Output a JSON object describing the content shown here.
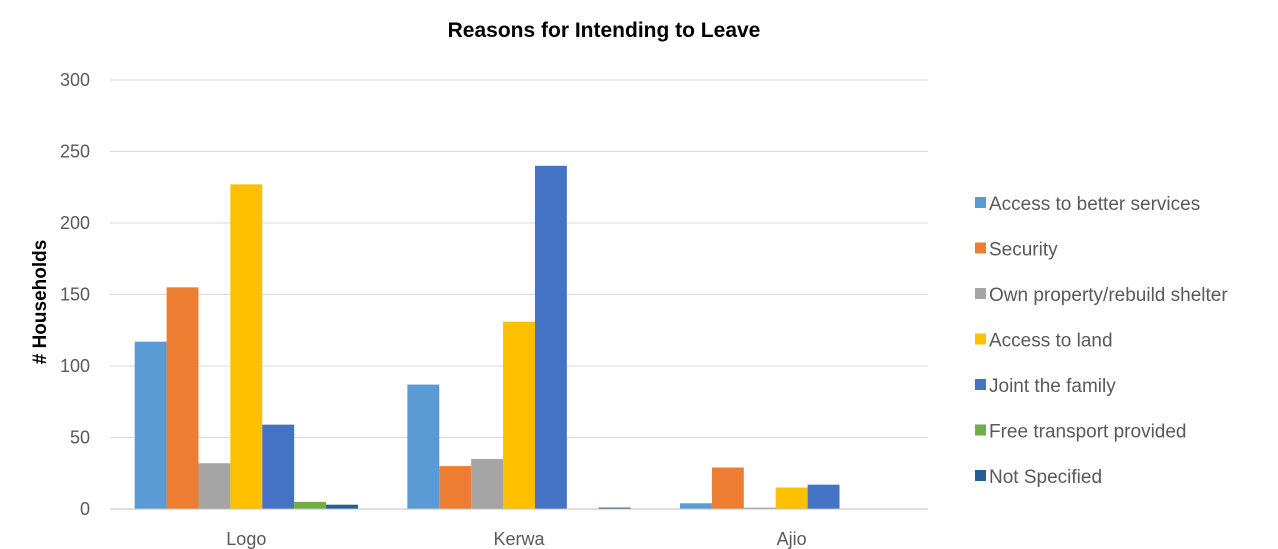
{
  "chart_data": {
    "type": "bar",
    "title": "Reasons for Intending to Leave",
    "xlabel": "",
    "ylabel": "# Households",
    "ylim": [
      0,
      300
    ],
    "yticks": [
      0,
      50,
      100,
      150,
      200,
      250,
      300
    ],
    "grid": true,
    "legend_position": "right",
    "categories": [
      "Logo",
      "Kerwa",
      "Ajio"
    ],
    "series": [
      {
        "name": "Access to better services",
        "color": "#5b9bd5",
        "values": [
          117,
          87,
          4
        ]
      },
      {
        "name": "Security",
        "color": "#ed7d31",
        "values": [
          155,
          30,
          29
        ]
      },
      {
        "name": "Own property/rebuild shelter",
        "color": "#a5a5a5",
        "values": [
          32,
          35,
          1
        ]
      },
      {
        "name": "Access to land",
        "color": "#ffc000",
        "values": [
          227,
          131,
          15
        ]
      },
      {
        "name": "Joint the family",
        "color": "#4472c4",
        "values": [
          59,
          240,
          17
        ]
      },
      {
        "name": "Free transport provided",
        "color": "#70ad47",
        "values": [
          5,
          0,
          0
        ]
      },
      {
        "name": "Not Specified",
        "color": "#255e91",
        "values": [
          3,
          1,
          0
        ]
      }
    ]
  }
}
